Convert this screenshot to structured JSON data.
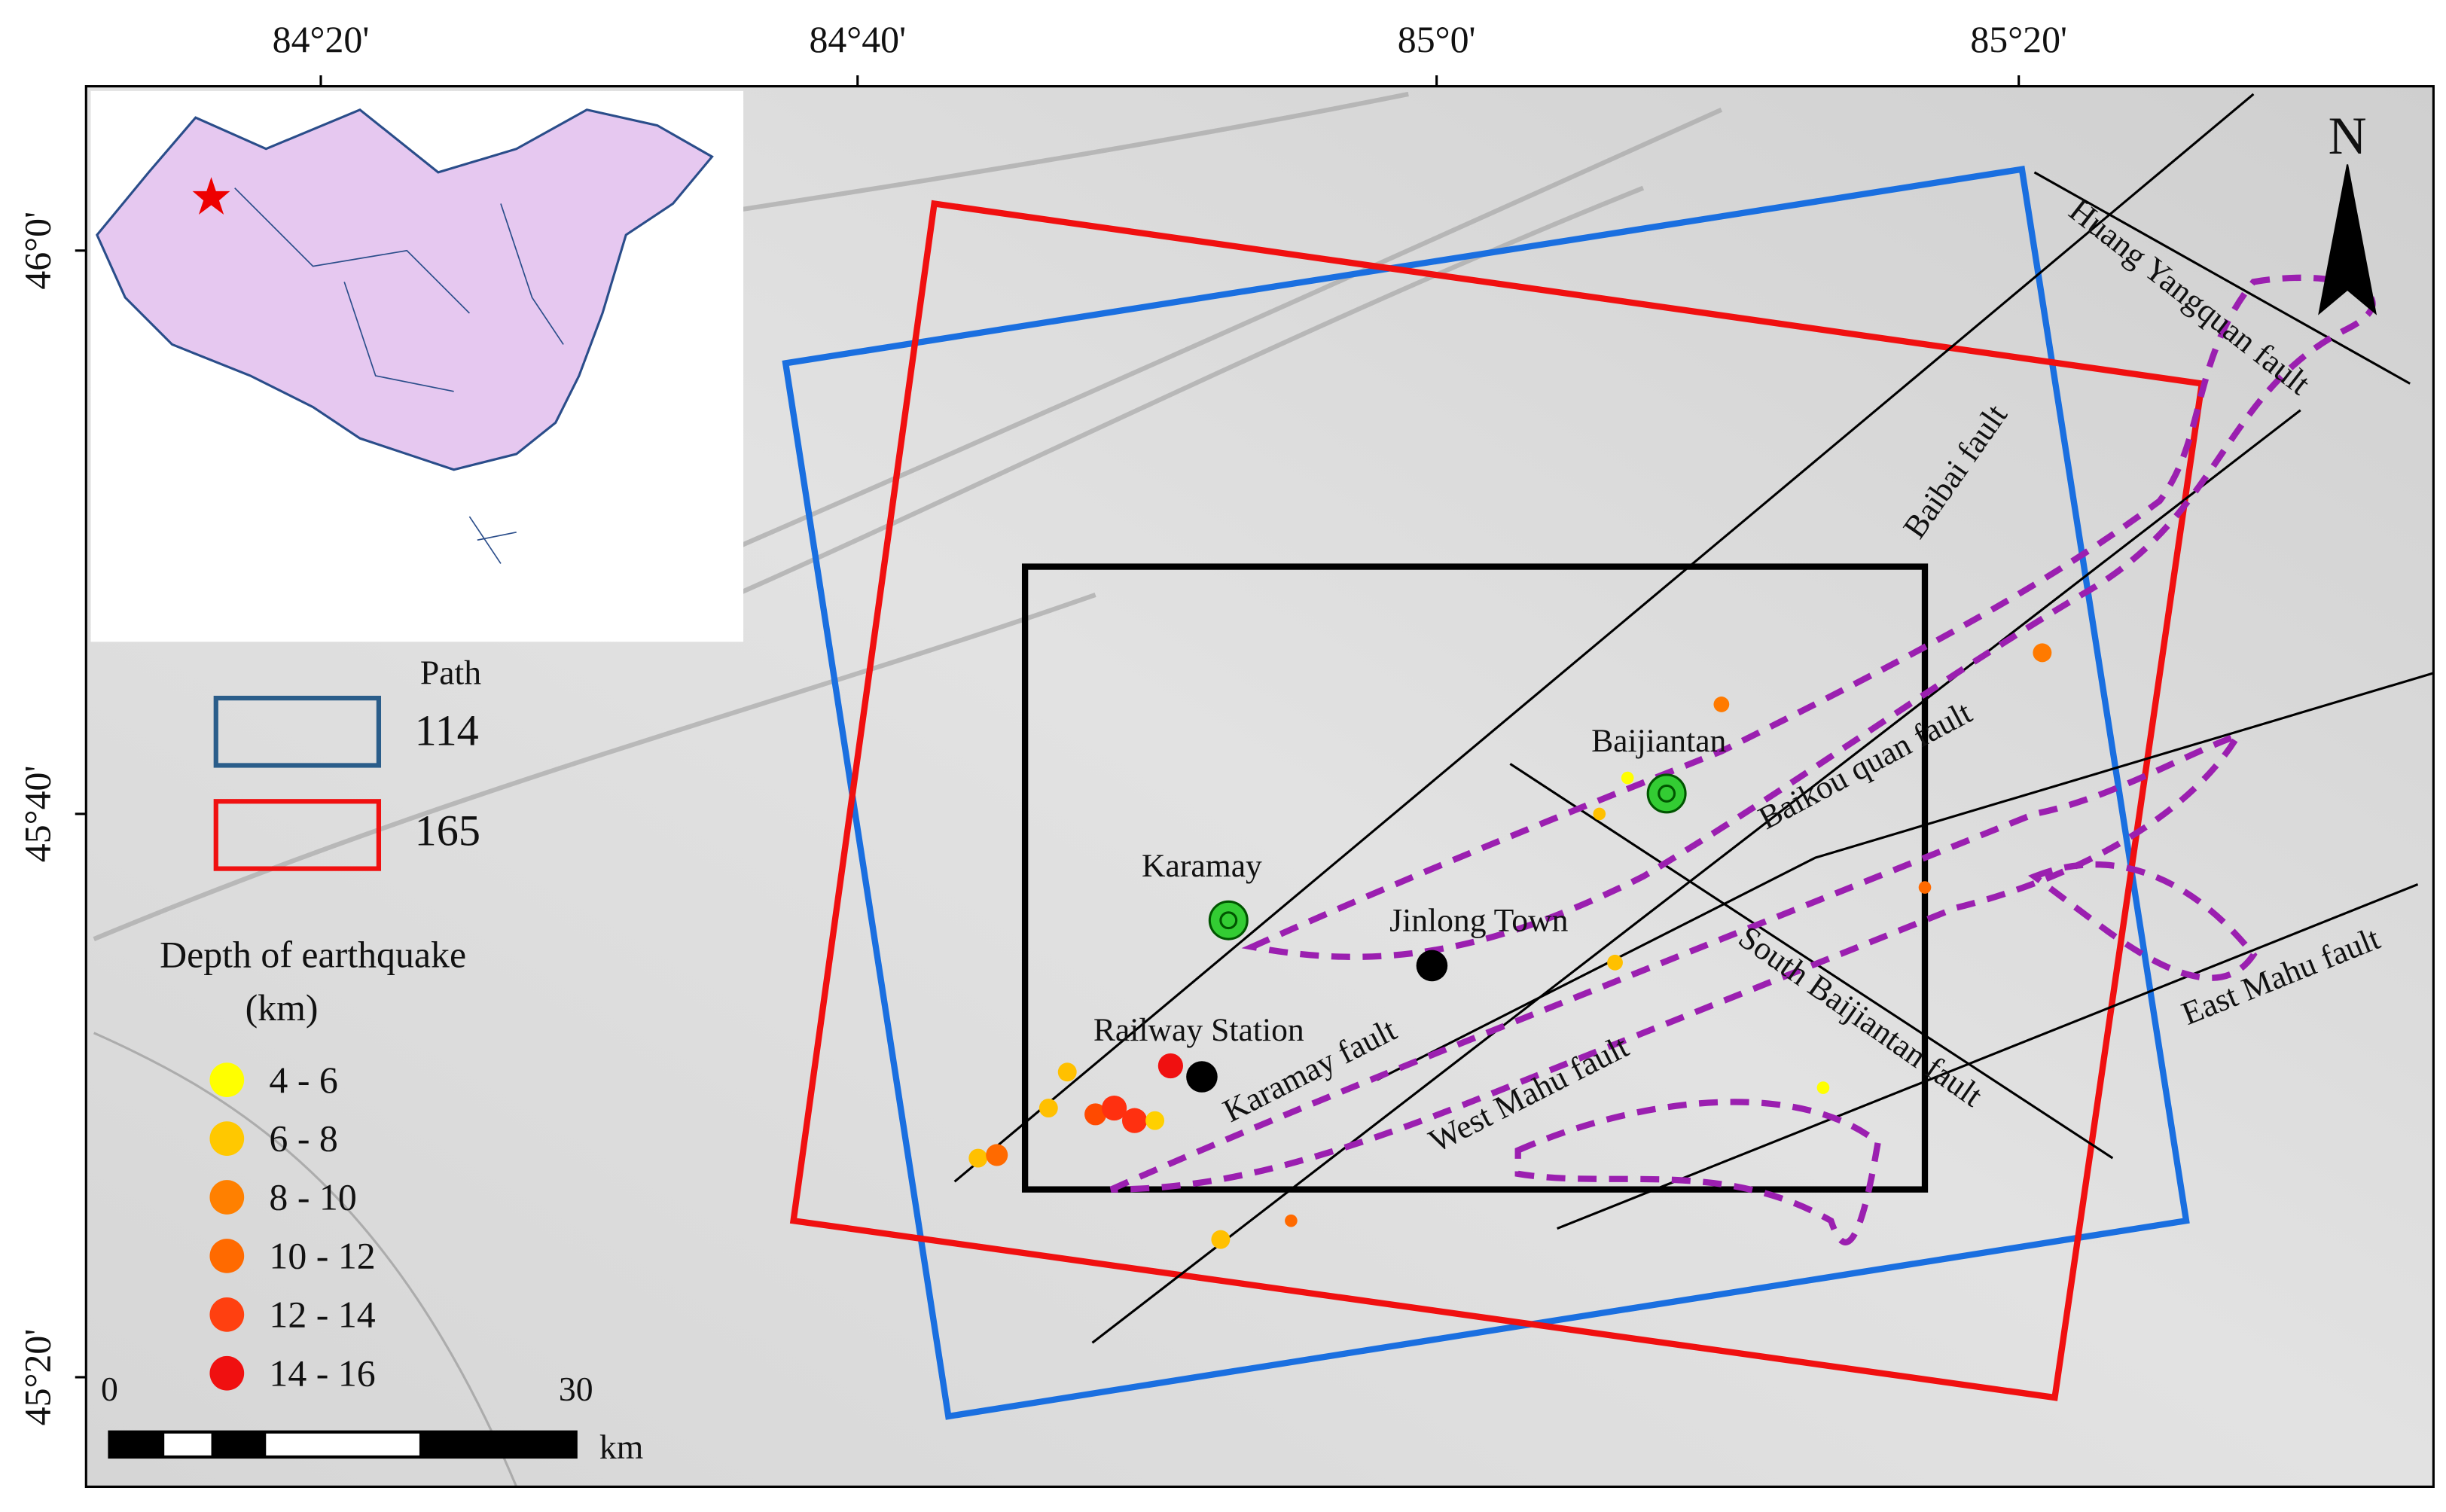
{
  "map": {
    "lon_labels": [
      "84°20'",
      "84°40'",
      "85°0'",
      "85°20'"
    ],
    "lat_labels": [
      "46°0'",
      "45°40'",
      "45°20'"
    ],
    "north": "N",
    "places": [
      "Baijiantan",
      "Karamay",
      "Jinlong Town",
      "Railway Station"
    ],
    "faults": [
      "Huang Yangquan fault",
      "Baibai  fault",
      "Baikou quan  fault",
      "South Baijiantan fault",
      "Karamay fault",
      "West Mahu fault",
      "East Mahu fault"
    ],
    "legend": {
      "path_title": "Path",
      "paths": [
        "114",
        "165"
      ],
      "depth_title": "Depth of earthquake",
      "depth_unit": "(km)",
      "depths": [
        "4  - 6",
        "6  -  8",
        "8  - 10",
        "10 - 12",
        "12 - 14",
        "14 - 16"
      ]
    },
    "scale": {
      "start": "0",
      "end": "30",
      "unit": "km"
    }
  }
}
